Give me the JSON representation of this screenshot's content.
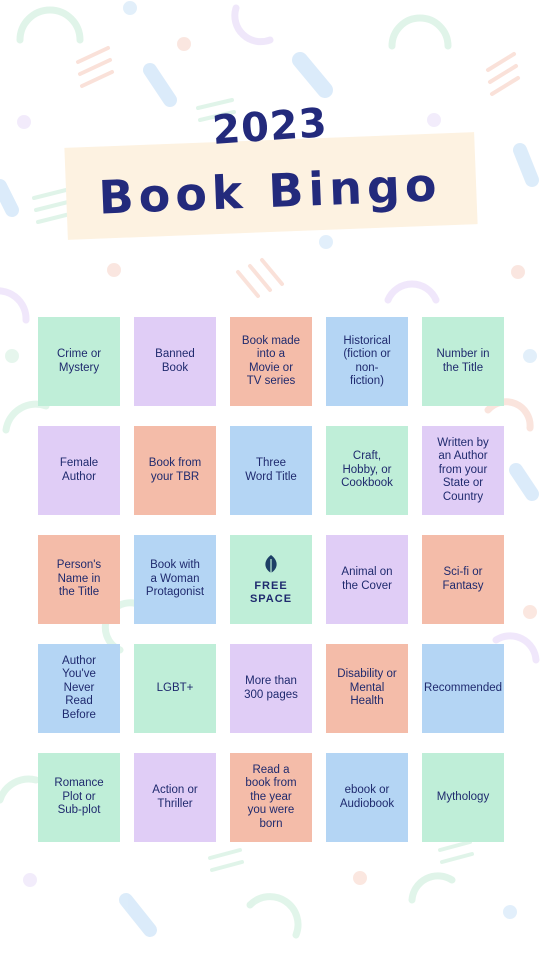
{
  "title": {
    "year": "2023",
    "main": "Book Bingo"
  },
  "colors": {
    "green": "#bfeed8",
    "purple": "#e0cdf6",
    "salmon": "#f4bca9",
    "blue": "#b4d5f4",
    "navy": "#1f2a6e",
    "title_navy": "#232a7c",
    "banner": "#fdf2e1"
  },
  "board": [
    {
      "label": "Crime or\nMystery",
      "color": "green"
    },
    {
      "label": "Banned\nBook",
      "color": "purple"
    },
    {
      "label": "Book made\ninto a\nMovie or\nTV series",
      "color": "salmon"
    },
    {
      "label": "Historical\n(fiction or\nnon-\nfiction)",
      "color": "blue"
    },
    {
      "label": "Number in\nthe Title",
      "color": "green"
    },
    {
      "label": "Female\nAuthor",
      "color": "purple"
    },
    {
      "label": "Book from\nyour TBR",
      "color": "salmon"
    },
    {
      "label": "Three\nWord Title",
      "color": "blue"
    },
    {
      "label": "Craft,\nHobby, or\nCookbook",
      "color": "green"
    },
    {
      "label": "Written by\nan Author\nfrom your\nState or\nCountry",
      "color": "purple"
    },
    {
      "label": "Person's\nName in\nthe Title",
      "color": "salmon"
    },
    {
      "label": "Book with\na Woman\nProtagonist",
      "color": "blue"
    },
    {
      "label": "FREE\nSPACE",
      "color": "green",
      "free": true,
      "icon": "leaf-icon"
    },
    {
      "label": "Animal on\nthe Cover",
      "color": "purple"
    },
    {
      "label": "Sci-fi or\nFantasy",
      "color": "salmon"
    },
    {
      "label": "Author\nYou've\nNever\nRead\nBefore",
      "color": "blue"
    },
    {
      "label": "LGBT+",
      "color": "green"
    },
    {
      "label": "More than\n300 pages",
      "color": "purple"
    },
    {
      "label": "Disability or\nMental\nHealth",
      "color": "salmon"
    },
    {
      "label": "Recommended",
      "color": "blue"
    },
    {
      "label": "Romance\nPlot or\nSub-plot",
      "color": "green"
    },
    {
      "label": "Action or\nThriller",
      "color": "purple"
    },
    {
      "label": "Read a\nbook from\nthe year\nyou were\nborn",
      "color": "salmon"
    },
    {
      "label": "ebook or\nAudiobook",
      "color": "blue"
    },
    {
      "label": "Mythology",
      "color": "green"
    }
  ]
}
